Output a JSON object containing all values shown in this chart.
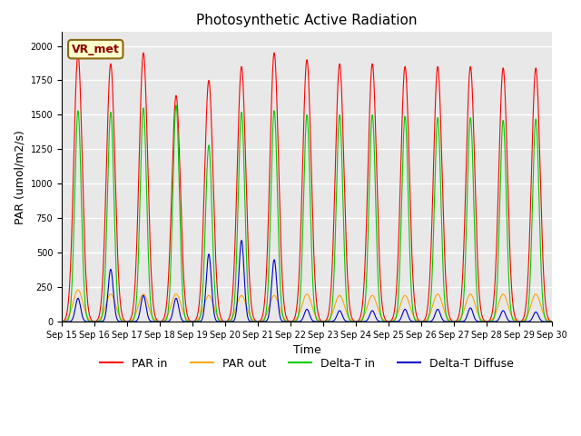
{
  "title": "Photosynthetic Active Radiation",
  "xlabel": "Time",
  "ylabel": "PAR (umol/m2/s)",
  "annotation": "VR_met",
  "ylim": [
    0,
    2100
  ],
  "background_color": "#e8e8e8",
  "grid_color": "white",
  "legend_labels": [
    "PAR in",
    "PAR out",
    "Delta-T in",
    "Delta-T Diffuse"
  ],
  "legend_colors": [
    "#ff0000",
    "#ffa500",
    "#00cc00",
    "#0000cc"
  ],
  "date_labels": [
    "Sep 15",
    "Sep 16",
    "Sep 17",
    "Sep 18",
    "Sep 19",
    "Sep 20",
    "Sep 21",
    "Sep 22",
    "Sep 23",
    "Sep 24",
    "Sep 25",
    "Sep 26",
    "Sep 27",
    "Sep 28",
    "Sep 29",
    "Sep 30"
  ],
  "n_days": 15,
  "points_per_day": 144,
  "par_in_peaks": [
    1940,
    1870,
    1950,
    1640,
    1750,
    1850,
    1950,
    1900,
    1870,
    1870,
    1850,
    1850,
    1850,
    1840,
    1840
  ],
  "par_out_peaks": [
    230,
    200,
    200,
    200,
    190,
    190,
    190,
    200,
    190,
    190,
    190,
    200,
    200,
    200,
    200
  ],
  "delta_t_peaks": [
    1530,
    1520,
    1550,
    1570,
    1280,
    1520,
    1530,
    1500,
    1500,
    1500,
    1490,
    1480,
    1480,
    1460,
    1470
  ],
  "delta_diff_peaks": [
    170,
    380,
    190,
    170,
    490,
    590,
    450,
    90,
    80,
    80,
    90,
    90,
    100,
    80,
    70
  ]
}
